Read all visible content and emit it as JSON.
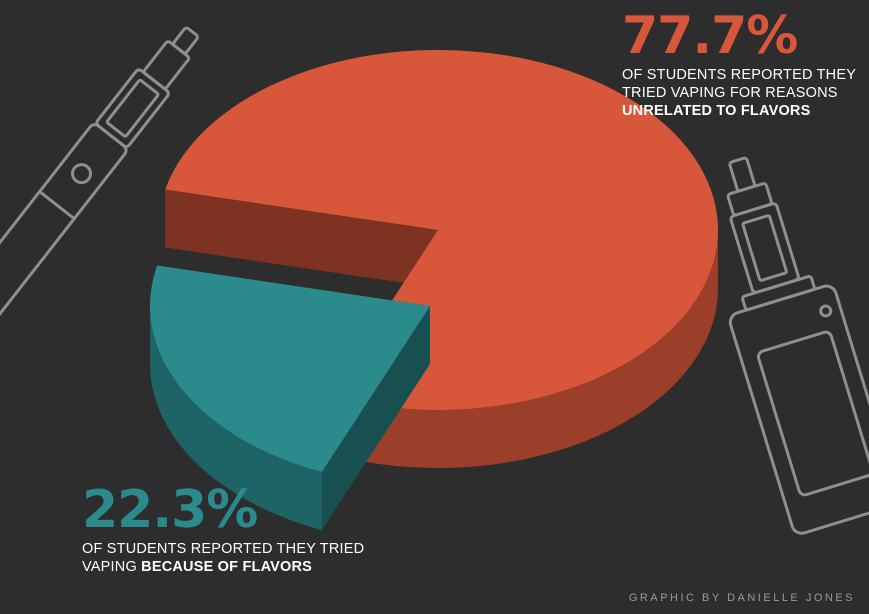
{
  "colors": {
    "background": "#2d2d2d",
    "flavor_unrelated": "#d8573a",
    "flavor_related": "#2a8a8c",
    "icon_stroke": "#8f8f8f"
  },
  "icons": [
    "vape-pen-icon",
    "vape-box-mod-icon"
  ],
  "chart_data": {
    "type": "pie",
    "style": "3d-exploded",
    "slices": [
      {
        "value": 77.7,
        "label": "77.7%",
        "color": "#d8573a"
      },
      {
        "value": 22.3,
        "label": "22.3%",
        "color": "#2a8a8c"
      }
    ]
  },
  "callouts": {
    "unrelated": {
      "percent": "77.7%",
      "line1": "OF STUDENTS REPORTED THEY",
      "line2": "TRIED VAPING FOR REASONS",
      "line3": "UNRELATED TO FLAVORS"
    },
    "flavors": {
      "percent": "22.3%",
      "line1": "OF STUDENTS REPORTED THEY TRIED",
      "line2_prefix": "VAPING ",
      "line2_strong": "BECAUSE OF FLAVORS"
    }
  },
  "credit": "GRAPHIC BY DANIELLE JONES"
}
